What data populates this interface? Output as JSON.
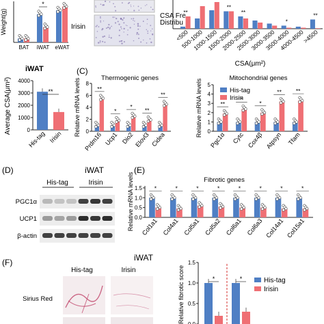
{
  "colors": {
    "his_tag": "#4f7fc4",
    "irisin": "#ef6f74",
    "axis": "#222222",
    "sig_line": "#d6302f"
  },
  "legend": {
    "his_tag": "His-tag",
    "irisin": "Irisin"
  },
  "panels": {
    "C": "(C)",
    "D": "(D)",
    "E": "(E)",
    "F": "(F)",
    "iwat_left": "iWAT",
    "iwat_blot": "iWAT",
    "iwat_f": "iWAT",
    "irisin_micro": "Irisin"
  },
  "blot": {
    "groups": [
      "His-tag",
      "Irisin"
    ],
    "proteins": [
      "PGC1α",
      "UCP1",
      "β-actin"
    ]
  },
  "histology": {
    "groups": [
      "His-tag",
      "Irisin"
    ],
    "stain": "Sirius Red"
  },
  "sig": {
    "double": "**",
    "single": "*"
  },
  "chart_data": [
    {
      "id": "tissue_weight",
      "type": "bar",
      "ylabel": "Weight(g)",
      "categories": [
        "BAT",
        "iWAT",
        "eWAT"
      ],
      "series": [
        {
          "name": "His-tag",
          "values": [
            0.15,
            1.1,
            1.25
          ]
        },
        {
          "name": "Irisin",
          "values": [
            0.15,
            0.6,
            1.4
          ]
        }
      ],
      "significance": [
        "",
        "*",
        ""
      ]
    },
    {
      "id": "csa_distribution",
      "type": "bar",
      "ylabel": "CSA Frequency Distribution",
      "xlabel": "CSA(μm²)",
      "categories": [
        "<500",
        "500-1000",
        "1000-1500",
        "1500-2000",
        "2000-2500",
        "2500-3000",
        "3000-3500",
        "3500-4000",
        "4000-4500",
        ">4500"
      ],
      "series": [
        {
          "name": "His-tag",
          "values": [
            2,
            10,
            18,
            17,
            12,
            8,
            5,
            3,
            2,
            9
          ]
        },
        {
          "name": "Irisin",
          "values": [
            12,
            22,
            26,
            17,
            10,
            6,
            3,
            1,
            1,
            0.5
          ]
        }
      ],
      "significance": [
        "**",
        "",
        "",
        "**",
        "**",
        "",
        "",
        "*",
        "",
        "**"
      ]
    },
    {
      "id": "average_csa",
      "type": "bar",
      "title": "iWAT",
      "ylabel": "Average CSA(μm²)",
      "categories": [
        "His-tag",
        "Irisin"
      ],
      "values": [
        3100,
        1450
      ],
      "yticks": [
        0,
        1000,
        2000,
        3000,
        4000
      ],
      "ylim": [
        0,
        4000
      ],
      "significance": "**"
    },
    {
      "id": "thermogenic_genes",
      "type": "bar",
      "title": "Thermogenic genes",
      "ylabel": "Relative mRNA levels",
      "categories": [
        "Prdm16",
        "Ucp1",
        "Dio2",
        "Elovl3",
        "Cidea"
      ],
      "series": [
        {
          "name": "His-tag",
          "values": [
            1,
            1,
            1,
            1,
            1
          ]
        },
        {
          "name": "Irisin",
          "values": [
            5.5,
            1.8,
            2.5,
            1.9,
            4.5
          ]
        }
      ],
      "yticks": [
        0,
        2,
        4,
        6,
        8
      ],
      "ylim": [
        0,
        8
      ],
      "significance": [
        "**",
        "*",
        "*",
        "**",
        "**"
      ]
    },
    {
      "id": "mitochondrial_genes",
      "type": "bar",
      "title": "Mitochondrial genes",
      "ylabel": "Relative mRNA levels",
      "categories": [
        "Pgc1α",
        "Cytc",
        "Cox4β",
        "Atpsyn",
        "Tfam"
      ],
      "series": [
        {
          "name": "His-tag",
          "values": [
            1,
            1,
            1,
            1,
            1
          ]
        },
        {
          "name": "Irisin",
          "values": [
            1.9,
            2.4,
            2.0,
            3.2,
            3.3
          ]
        }
      ],
      "yticks": [
        0,
        1,
        2,
        3,
        4,
        5
      ],
      "ylim": [
        0,
        5
      ],
      "significance": [
        "**",
        "*",
        "*",
        "**",
        "**"
      ]
    },
    {
      "id": "fibrotic_genes",
      "type": "bar",
      "title": "Fibrotic genes",
      "ylabel": "Relative mRNA levels",
      "categories": [
        "Col1a1",
        "Col4a1",
        "Col5a1",
        "Col5a2",
        "Col6a1",
        "Col6a3",
        "Col14a1",
        "Col15a1"
      ],
      "series": [
        {
          "name": "His-tag",
          "values": [
            1,
            1,
            1,
            1,
            1,
            1,
            1,
            1
          ]
        },
        {
          "name": "Irisin",
          "values": [
            0.5,
            0.45,
            0.6,
            0.55,
            0.5,
            0.5,
            0.45,
            0.45
          ]
        }
      ],
      "yticks": [
        0.0,
        0.5,
        1.0,
        1.5
      ],
      "ylim": [
        0,
        1.6
      ],
      "significance": [
        "*",
        "*",
        "*",
        "*",
        "*",
        "*",
        "*",
        "*"
      ]
    },
    {
      "id": "fibrotic_score",
      "type": "bar",
      "ylabel": "Relative fibrotic score",
      "categories": [
        "His-tag",
        "Irisin",
        "His-tag",
        "Irisin"
      ],
      "values": [
        1.0,
        0.2,
        1.0,
        0.3
      ],
      "yticks": [
        0.0,
        0.5,
        1.0,
        1.5
      ],
      "ylim": [
        0,
        1.5
      ],
      "significance": [
        "*",
        "*"
      ]
    }
  ]
}
